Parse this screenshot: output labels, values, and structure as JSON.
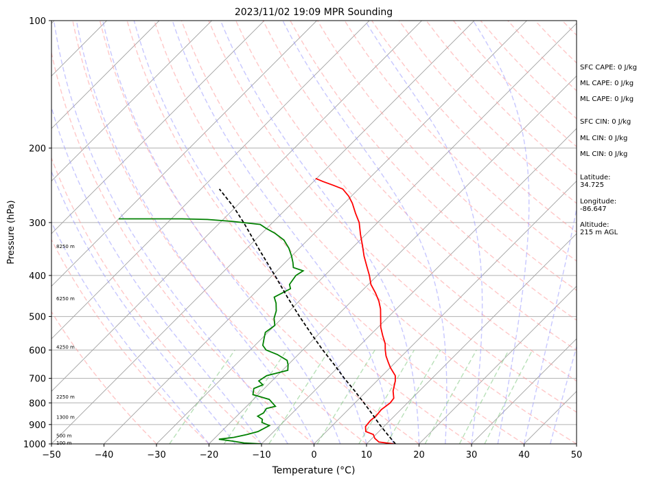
{
  "chart_data": {
    "type": "line",
    "title": "2023/11/02 19:09 MPR Sounding",
    "xlabel": "Temperature (°C)",
    "ylabel": "Pressure (hPa)",
    "xlim": [
      -50,
      50
    ],
    "ylim": [
      1000,
      100
    ],
    "yscale": "log",
    "skew": "skew-T log-p",
    "grid": true,
    "xticks": [
      -50,
      -40,
      -30,
      -20,
      -10,
      0,
      10,
      20,
      30,
      40,
      50
    ],
    "xtick_labels": [
      "−50",
      "−40",
      "−30",
      "−20",
      "−10",
      "0",
      "10",
      "20",
      "30",
      "40",
      "50"
    ],
    "yticks": [
      1000,
      900,
      800,
      700,
      600,
      500,
      400,
      300,
      200,
      100
    ],
    "ytick_labels": [
      "1000",
      "900",
      "800",
      "700",
      "600",
      "500",
      "400",
      "300",
      "200",
      "100"
    ],
    "height_labels": [
      {
        "p": 992,
        "text": "100 m"
      },
      {
        "p": 955,
        "text": "500 m"
      },
      {
        "p": 862,
        "text": "1300 m"
      },
      {
        "p": 773,
        "text": "2250 m"
      },
      {
        "p": 589,
        "text": "4250 m"
      },
      {
        "p": 453,
        "text": "6250 m"
      },
      {
        "p": 341,
        "text": "8250 m"
      }
    ],
    "series": [
      {
        "role": "temperature",
        "color": "#ff0000",
        "points": [
          [
            15.2,
            1000
          ],
          [
            12.0,
            990
          ],
          [
            10.5,
            970
          ],
          [
            9.5,
            950
          ],
          [
            7.5,
            935
          ],
          [
            6.5,
            910
          ],
          [
            6.3,
            880
          ],
          [
            6.5,
            860
          ],
          [
            6.3,
            830
          ],
          [
            6.7,
            800
          ],
          [
            6.5,
            780
          ],
          [
            5.0,
            750
          ],
          [
            3.5,
            710
          ],
          [
            2.5,
            690
          ],
          [
            0.0,
            660
          ],
          [
            -1.5,
            640
          ],
          [
            -3.0,
            620
          ],
          [
            -4.3,
            600
          ],
          [
            -5.5,
            580
          ],
          [
            -7.5,
            555
          ],
          [
            -9.5,
            530
          ],
          [
            -11.2,
            505
          ],
          [
            -13.0,
            480
          ],
          [
            -14.8,
            460
          ],
          [
            -17.0,
            440
          ],
          [
            -19.5,
            420
          ],
          [
            -21.5,
            400
          ],
          [
            -23.8,
            380
          ],
          [
            -26.2,
            360
          ],
          [
            -28.5,
            340
          ],
          [
            -31.0,
            320
          ],
          [
            -33.5,
            300
          ],
          [
            -36.0,
            285
          ],
          [
            -38.5,
            270
          ],
          [
            -40.5,
            260
          ],
          [
            -43.0,
            250
          ],
          [
            -45.5,
            245
          ],
          [
            -48.2,
            240
          ],
          [
            -50.2,
            236
          ]
        ]
      },
      {
        "role": "dewpoint",
        "color": "#008000",
        "points": [
          [
            -10.0,
            1000
          ],
          [
            -13.5,
            995
          ],
          [
            -16.0,
            985
          ],
          [
            -19.0,
            975
          ],
          [
            -16.5,
            965
          ],
          [
            -14.5,
            950
          ],
          [
            -13.0,
            935
          ],
          [
            -12.0,
            905
          ],
          [
            -14.0,
            890
          ],
          [
            -14.5,
            875
          ],
          [
            -16.0,
            860
          ],
          [
            -15.5,
            845
          ],
          [
            -15.8,
            825
          ],
          [
            -14.5,
            815
          ],
          [
            -17.0,
            785
          ],
          [
            -21.0,
            765
          ],
          [
            -22.0,
            740
          ],
          [
            -21.0,
            725
          ],
          [
            -22.5,
            710
          ],
          [
            -22.0,
            690
          ],
          [
            -19.0,
            670
          ],
          [
            -20.0,
            650
          ],
          [
            -21.0,
            635
          ],
          [
            -24.0,
            615
          ],
          [
            -27.0,
            600
          ],
          [
            -28.5,
            585
          ],
          [
            -29.5,
            565
          ],
          [
            -30.5,
            545
          ],
          [
            -30.0,
            525
          ],
          [
            -31.5,
            505
          ],
          [
            -32.5,
            485
          ],
          [
            -34.0,
            465
          ],
          [
            -35.5,
            450
          ],
          [
            -34.0,
            430
          ],
          [
            -35.0,
            420
          ],
          [
            -35.5,
            400
          ],
          [
            -35.0,
            390
          ],
          [
            -37.5,
            383
          ],
          [
            -38.5,
            373
          ],
          [
            -40.0,
            360
          ],
          [
            -42.0,
            345
          ],
          [
            -44.5,
            330
          ],
          [
            -47.5,
            318
          ],
          [
            -50.0,
            310
          ],
          [
            -52.0,
            303
          ],
          [
            -58.0,
            298
          ],
          [
            -63.0,
            295
          ],
          [
            -68.0,
            294
          ],
          [
            -75.0,
            294
          ],
          [
            -80.0,
            294
          ]
        ]
      },
      {
        "role": "parcel",
        "color": "#000000",
        "style": "dashed",
        "points": [
          [
            15.5,
            1000
          ],
          [
            12.2,
            950
          ],
          [
            8.8,
            900
          ],
          [
            5.4,
            850
          ],
          [
            1.7,
            800
          ],
          [
            -2.3,
            750
          ],
          [
            -6.7,
            700
          ],
          [
            -11.2,
            650
          ],
          [
            -16.2,
            600
          ],
          [
            -21.4,
            550
          ],
          [
            -27.0,
            500
          ],
          [
            -33.0,
            450
          ],
          [
            -39.5,
            400
          ],
          [
            -47.0,
            350
          ],
          [
            -55.5,
            300
          ],
          [
            -60.5,
            275
          ],
          [
            -66.5,
            250
          ]
        ]
      }
    ],
    "background_lines": [
      {
        "kind": "isotherms",
        "color": "#a0a0a0",
        "style": "solid"
      },
      {
        "kind": "dry adiabats",
        "color": "#ff9999",
        "style": "dashed"
      },
      {
        "kind": "moist adiabats",
        "color": "#9999ff",
        "style": "dashed"
      },
      {
        "kind": "mixing ratio",
        "color": "#88cc88",
        "style": "dashed"
      }
    ]
  },
  "info": [
    "SFC CAPE: 0 J/kg",
    "ML CAPE: 0 J/kg",
    "ML CAPE: 0 J/kg",
    "SFC CIN: 0 J/kg",
    "ML CIN: 0 J/kg",
    "ML CIN: 0 J/kg",
    "Latitude:",
    "34.725",
    "Longitude:",
    "-86.647",
    "Altitude:",
    "215 m AGL"
  ]
}
